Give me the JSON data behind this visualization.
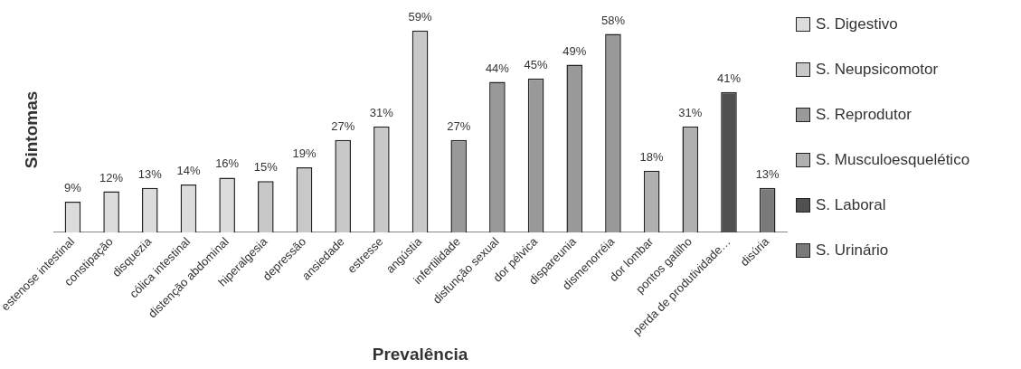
{
  "chart_data": {
    "type": "bar",
    "stacked": true,
    "xlabel": "Prevalência",
    "ylabel": "Sintomas",
    "legend": "right",
    "grid": false,
    "tick_labels": "x",
    "categories": [
      "estenose intestinal",
      "constipação",
      "disquezia",
      "cólica intestinal",
      "distenção abdominal",
      "hiperalgesia",
      "depressão",
      "ansiedade",
      "estresse",
      "angústia",
      "infertilidade",
      "disfunção sexual",
      "dor pélvica",
      "dispareunia",
      "dismenorréia",
      "dor lombar",
      "pontos gatilho",
      "perda de produtividade…",
      "disúria"
    ],
    "series": [
      {
        "name": "S. Digestivo",
        "color": "#dcdcdc",
        "values": [
          9,
          12,
          13,
          14,
          16,
          null,
          null,
          null,
          null,
          null,
          null,
          null,
          null,
          null,
          null,
          null,
          null,
          null,
          null
        ],
        "value_labels": [
          "9%",
          "12%",
          "13%",
          "14%",
          "16%",
          null,
          null,
          null,
          null,
          null,
          null,
          null,
          null,
          null,
          null,
          null,
          null,
          null,
          null
        ]
      },
      {
        "name": "S. Neupsicomotor",
        "color": "#c8c8c8",
        "values": [
          null,
          null,
          null,
          null,
          null,
          15,
          19,
          27,
          31,
          59,
          null,
          null,
          null,
          null,
          null,
          null,
          null,
          null,
          null
        ],
        "value_labels": [
          null,
          null,
          null,
          null,
          null,
          "15%",
          "19%",
          "27%",
          "31%",
          "59%",
          null,
          null,
          null,
          null,
          null,
          null,
          null,
          null,
          null
        ]
      },
      {
        "name": "S. Reprodutor",
        "color": "#999999",
        "values": [
          null,
          null,
          null,
          null,
          null,
          null,
          null,
          null,
          null,
          null,
          27,
          44,
          45,
          49,
          58,
          null,
          null,
          null,
          null
        ],
        "value_labels": [
          null,
          null,
          null,
          null,
          null,
          null,
          null,
          null,
          null,
          null,
          "27%",
          "44%",
          "45%",
          "49%",
          "58%",
          null,
          null,
          null,
          null
        ]
      },
      {
        "name": "S. Musculoesquelético",
        "color": "#b0b0b0",
        "values": [
          null,
          null,
          null,
          null,
          null,
          null,
          null,
          null,
          null,
          null,
          null,
          null,
          null,
          null,
          null,
          18,
          31,
          null,
          null
        ],
        "value_labels": [
          null,
          null,
          null,
          null,
          null,
          null,
          null,
          null,
          null,
          null,
          null,
          null,
          null,
          null,
          null,
          "18%",
          "31%",
          null,
          null
        ]
      },
      {
        "name": "S. Laboral",
        "color": "#505050",
        "values": [
          null,
          null,
          null,
          null,
          null,
          null,
          null,
          null,
          null,
          null,
          null,
          null,
          null,
          null,
          null,
          null,
          null,
          41,
          null
        ],
        "value_labels": [
          null,
          null,
          null,
          null,
          null,
          null,
          null,
          null,
          null,
          null,
          null,
          null,
          null,
          null,
          null,
          null,
          null,
          "41%",
          null
        ]
      },
      {
        "name": "S. Urinário",
        "color": "#7a7a7a",
        "values": [
          null,
          null,
          null,
          null,
          null,
          null,
          null,
          null,
          null,
          null,
          null,
          null,
          null,
          null,
          null,
          null,
          null,
          null,
          13
        ],
        "value_labels": [
          null,
          null,
          null,
          null,
          null,
          null,
          null,
          null,
          null,
          null,
          null,
          null,
          null,
          null,
          null,
          null,
          null,
          null,
          "13%"
        ]
      }
    ]
  }
}
